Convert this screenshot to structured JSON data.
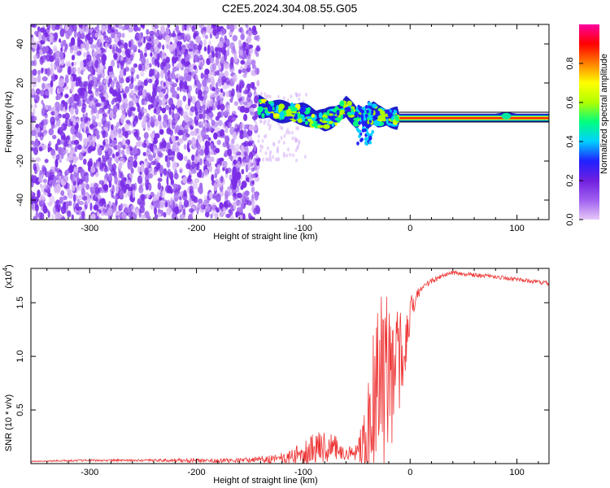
{
  "title": "C2E5.2024.304.08.55.G05",
  "chart_data": [
    {
      "type": "heatmap",
      "xlabel": "Height of straight line (km)",
      "ylabel": "Frequency (Hz)",
      "xlim": [
        -355,
        130
      ],
      "ylim": [
        -50,
        50
      ],
      "x_ticks": [
        -300,
        -200,
        -100,
        0,
        100
      ],
      "y_ticks": [
        -40,
        -20,
        0,
        20,
        40
      ],
      "colorbar": {
        "label": "Normalized spectral amplitude",
        "range": [
          0,
          1
        ],
        "ticks": [
          "0.0",
          "0.2",
          "0.4",
          "0.6",
          "0.8"
        ],
        "tick_values": [
          0,
          0.2,
          0.4,
          0.6,
          0.8
        ],
        "colormap": [
          "#ffffff",
          "#e8c8f8",
          "#a060f0",
          "#7020e0",
          "#2020ff",
          "#00d0ff",
          "#00ff80",
          "#b0ff00",
          "#ffff00",
          "#ff8000",
          "#ff0000",
          "#ff00a0"
        ]
      },
      "regions": [
        {
          "x": [
            -355,
            -142
          ],
          "freq": [
            -50,
            50
          ],
          "amplitude": 0.1,
          "pattern": "noise"
        },
        {
          "x": [
            -142,
            -10
          ],
          "freq": [
            -12,
            10
          ],
          "amplitude": 0.4,
          "pattern": "blobs"
        },
        {
          "x": [
            -10,
            130
          ],
          "freq": [
            0,
            5
          ],
          "amplitude": 0.95,
          "pattern": "line"
        }
      ],
      "track": {
        "x": [
          -142,
          -130,
          -115,
          -100,
          -90,
          -80,
          -70,
          -60,
          -55,
          -50,
          -45,
          -40,
          -35,
          -30,
          -20,
          -10,
          0,
          20,
          40,
          60,
          80,
          90,
          100,
          130
        ],
        "freq": [
          8,
          6,
          5,
          4,
          2,
          1,
          3,
          8,
          5,
          2,
          4,
          1,
          5,
          3,
          2,
          2,
          2,
          2,
          2,
          2,
          2,
          3,
          2,
          2
        ]
      }
    },
    {
      "type": "line",
      "xlabel": "Height of straight line (km)",
      "ylabel": "SNR (10 * v/v)",
      "y_exponent": "4",
      "xlim": [
        -355,
        130
      ],
      "ylim": [
        0,
        1.82
      ],
      "x_ticks": [
        -300,
        -200,
        -100,
        0,
        100
      ],
      "y_ticks": [
        0.5,
        1.0,
        1.5
      ],
      "y_tick_labels": [
        "0.5",
        "1.0",
        "1.5"
      ],
      "color": "#ee3333",
      "envelope": {
        "x": [
          -355,
          -300,
          -250,
          -200,
          -160,
          -140,
          -120,
          -110,
          -100,
          -90,
          -80,
          -70,
          -60,
          -50,
          -45,
          -40,
          -35,
          -30,
          -25,
          -20,
          -15,
          -10,
          -5,
          0,
          5,
          10,
          20,
          30,
          40,
          60,
          80,
          100,
          115,
          130
        ],
        "base": [
          0.02,
          0.03,
          0.03,
          0.03,
          0.03,
          0.04,
          0.05,
          0.07,
          0.1,
          0.13,
          0.15,
          0.14,
          0.1,
          0.1,
          0.15,
          0.3,
          0.5,
          0.7,
          0.8,
          0.8,
          0.9,
          0.95,
          1.0,
          1.4,
          1.55,
          1.62,
          1.7,
          1.75,
          1.78,
          1.76,
          1.74,
          1.72,
          1.7,
          1.68
        ],
        "amp": [
          0.005,
          0.01,
          0.01,
          0.02,
          0.02,
          0.03,
          0.05,
          0.08,
          0.12,
          0.16,
          0.15,
          0.12,
          0.06,
          0.08,
          0.25,
          0.45,
          0.8,
          0.8,
          0.9,
          0.8,
          0.6,
          0.5,
          0.3,
          0.15,
          0.08,
          0.04,
          0.03,
          0.02,
          0.02,
          0.02,
          0.02,
          0.02,
          0.02,
          0.02
        ]
      }
    }
  ]
}
